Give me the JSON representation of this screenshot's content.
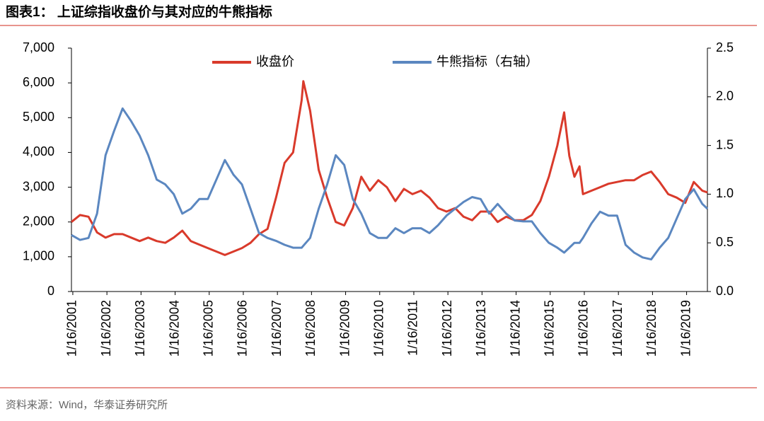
{
  "header": {
    "title": "图表1： 上证综指收盘价与其对应的牛熊指标"
  },
  "chart_data": {
    "type": "line",
    "x": [
      2001.0,
      2001.25,
      2001.5,
      2001.75,
      2002.0,
      2002.25,
      2002.5,
      2002.75,
      2003.0,
      2003.25,
      2003.5,
      2003.75,
      2004.0,
      2004.25,
      2004.5,
      2004.75,
      2005.0,
      2005.25,
      2005.5,
      2005.75,
      2006.0,
      2006.25,
      2006.5,
      2006.75,
      2007.0,
      2007.25,
      2007.5,
      2007.75,
      2007.8,
      2008.0,
      2008.25,
      2008.5,
      2008.75,
      2009.0,
      2009.25,
      2009.5,
      2009.75,
      2010.0,
      2010.25,
      2010.5,
      2010.75,
      2011.0,
      2011.25,
      2011.5,
      2011.75,
      2012.0,
      2012.25,
      2012.5,
      2012.75,
      2013.0,
      2013.25,
      2013.5,
      2013.75,
      2014.0,
      2014.25,
      2014.5,
      2014.75,
      2015.0,
      2015.25,
      2015.45,
      2015.6,
      2015.75,
      2015.9,
      2016.0,
      2016.25,
      2016.5,
      2016.75,
      2017.0,
      2017.25,
      2017.5,
      2017.75,
      2018.0,
      2018.25,
      2018.5,
      2018.75,
      2019.0,
      2019.25,
      2019.5,
      2019.65
    ],
    "series": [
      {
        "name": "收盘价",
        "color": "#d93a2b",
        "axis": "y",
        "values": [
          2000,
          2200,
          2150,
          1700,
          1550,
          1650,
          1650,
          1550,
          1450,
          1550,
          1450,
          1400,
          1550,
          1750,
          1450,
          1350,
          1250,
          1150,
          1050,
          1150,
          1250,
          1400,
          1650,
          1800,
          2700,
          3700,
          4000,
          5500,
          6050,
          5200,
          3500,
          2700,
          2000,
          1900,
          2400,
          3300,
          2900,
          3200,
          3000,
          2600,
          2950,
          2800,
          2900,
          2700,
          2400,
          2300,
          2400,
          2150,
          2050,
          2300,
          2300,
          2000,
          2150,
          2050,
          2050,
          2200,
          2600,
          3300,
          4200,
          5150,
          3900,
          3300,
          3600,
          2800,
          2900,
          3000,
          3100,
          3150,
          3200,
          3200,
          3350,
          3450,
          3150,
          2800,
          2700,
          2550,
          3150,
          2900,
          2850
        ]
      },
      {
        "name": "牛熊指标（右轴）",
        "color": "#5b87c0",
        "axis": "y2",
        "values": [
          0.58,
          0.53,
          0.55,
          0.8,
          1.4,
          1.65,
          1.88,
          1.75,
          1.6,
          1.4,
          1.15,
          1.1,
          1.0,
          0.8,
          0.85,
          0.95,
          0.95,
          1.15,
          1.35,
          1.2,
          1.1,
          0.85,
          0.6,
          0.55,
          0.52,
          0.48,
          0.45,
          0.45,
          0.47,
          0.55,
          0.85,
          1.1,
          1.4,
          1.3,
          0.95,
          0.8,
          0.6,
          0.55,
          0.55,
          0.65,
          0.6,
          0.65,
          0.65,
          0.6,
          0.68,
          0.78,
          0.85,
          0.92,
          0.97,
          0.95,
          0.8,
          0.9,
          0.8,
          0.73,
          0.72,
          0.72,
          0.6,
          0.5,
          0.45,
          0.4,
          0.45,
          0.5,
          0.5,
          0.55,
          0.7,
          0.82,
          0.78,
          0.78,
          0.48,
          0.4,
          0.35,
          0.33,
          0.45,
          0.55,
          0.75,
          0.95,
          1.05,
          0.9,
          0.85
        ]
      }
    ],
    "xlim": [
      2001.0,
      2019.65
    ],
    "xticks": [
      {
        "value": 2001.04,
        "label": "1/16/2001"
      },
      {
        "value": 2002.04,
        "label": "1/16/2002"
      },
      {
        "value": 2003.04,
        "label": "1/16/2003"
      },
      {
        "value": 2004.04,
        "label": "1/16/2004"
      },
      {
        "value": 2005.04,
        "label": "1/16/2005"
      },
      {
        "value": 2006.04,
        "label": "1/16/2006"
      },
      {
        "value": 2007.04,
        "label": "1/16/2007"
      },
      {
        "value": 2008.04,
        "label": "1/16/2008"
      },
      {
        "value": 2009.04,
        "label": "1/16/2009"
      },
      {
        "value": 2010.04,
        "label": "1/16/2010"
      },
      {
        "value": 2011.04,
        "label": "1/16/2011"
      },
      {
        "value": 2012.04,
        "label": "1/16/2012"
      },
      {
        "value": 2013.04,
        "label": "1/16/2013"
      },
      {
        "value": 2014.04,
        "label": "1/16/2014"
      },
      {
        "value": 2015.04,
        "label": "1/16/2015"
      },
      {
        "value": 2016.04,
        "label": "1/16/2016"
      },
      {
        "value": 2017.04,
        "label": "1/16/2017"
      },
      {
        "value": 2018.04,
        "label": "1/16/2018"
      },
      {
        "value": 2019.04,
        "label": "1/16/2019"
      }
    ],
    "ylim": [
      0,
      7000
    ],
    "yticks": [
      0,
      {
        "value": 1000,
        "label": "1,000"
      },
      {
        "value": 2000,
        "label": "2,000"
      },
      {
        "value": 3000,
        "label": "3,000"
      },
      {
        "value": 4000,
        "label": "4,000"
      },
      {
        "value": 5000,
        "label": "5,000"
      },
      {
        "value": 6000,
        "label": "6,000"
      },
      {
        "value": 7000,
        "label": "7,000"
      }
    ],
    "y2lim": [
      0,
      2.5
    ],
    "y2ticks": [
      {
        "value": 0,
        "label": "0.0"
      },
      0.5,
      {
        "value": 1,
        "label": "1.0"
      },
      1.5,
      {
        "value": 2,
        "label": "2.0"
      },
      2.5
    ],
    "legend": "top"
  },
  "footer": {
    "source": "资料来源：Wind，华泰证券研究所"
  }
}
